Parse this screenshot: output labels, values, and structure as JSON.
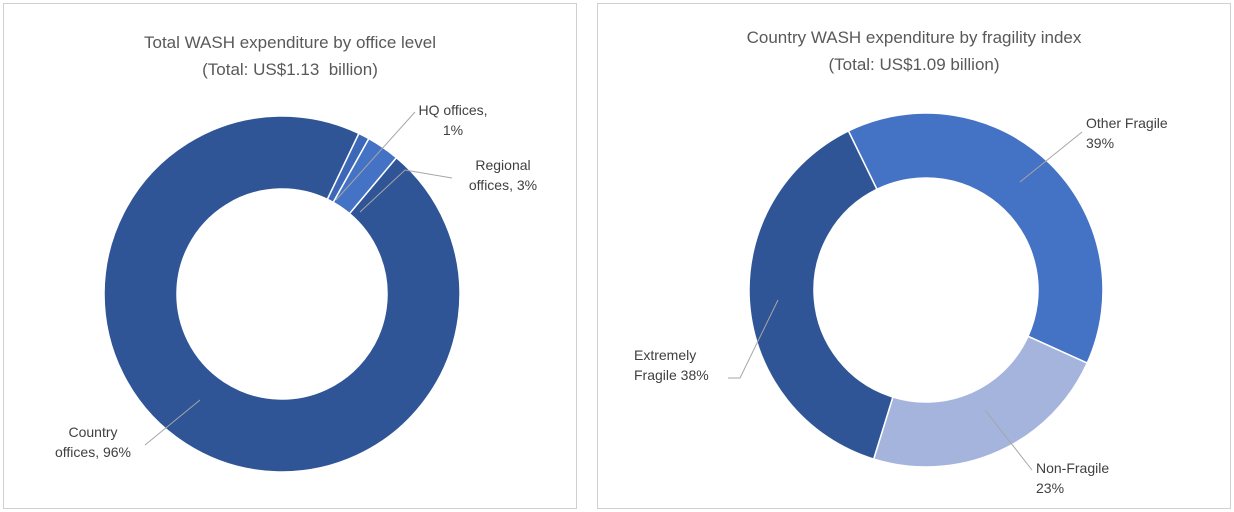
{
  "chart_data": [
    {
      "type": "donut",
      "title": "Total WASH expenditure by office level",
      "subtitle": "(Total: US$1.13  billion)",
      "values": [
        96,
        1,
        3
      ],
      "value_labels": [
        "Country offices, 96%",
        "HQ offices, 1%",
        "Regional offices, 3%"
      ],
      "colors": [
        "#2f5597",
        "#3d68b8",
        "#4472c4"
      ]
    },
    {
      "type": "donut",
      "title": "Country WASH expenditure by fragility index",
      "subtitle": "(Total: US$1.09 billion)",
      "values": [
        39,
        23,
        38
      ],
      "value_labels": [
        "Other Fragile 39%",
        "Non-Fragile 23%",
        "Extremely Fragile 38%"
      ],
      "colors": [
        "#4472c4",
        "#a5b4dc",
        "#2f5597"
      ]
    }
  ]
}
